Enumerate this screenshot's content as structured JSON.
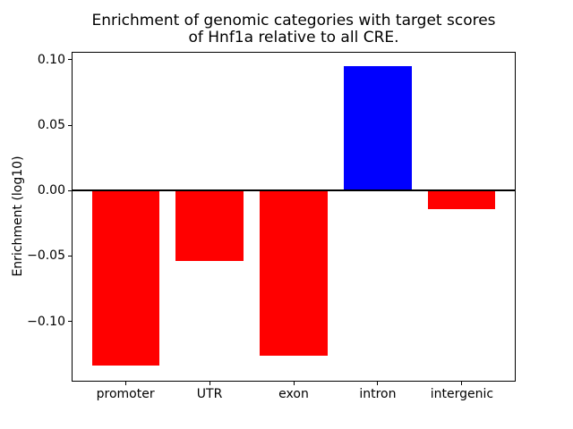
{
  "chart_data": {
    "type": "bar",
    "title": "Enrichment of genomic categories with target scores\nof Hnf1a relative to all CRE.",
    "title_lines": [
      "Enrichment of genomic categories with target scores",
      "of Hnf1a relative to all CRE."
    ],
    "xlabel": "",
    "ylabel": "Enrichment (log10)",
    "categories": [
      "promoter",
      "UTR",
      "exon",
      "intron",
      "intergenic"
    ],
    "values": [
      -0.134,
      -0.054,
      -0.126,
      0.095,
      -0.014
    ],
    "bar_colors": [
      "#ff0000",
      "#ff0000",
      "#ff0000",
      "#0000ff",
      "#ff0000"
    ],
    "yticks": [
      {
        "label": "0.10",
        "value": 0.1
      },
      {
        "label": "0.05",
        "value": 0.05
      },
      {
        "label": "0.00",
        "value": 0.0
      },
      {
        "label": "−0.05",
        "value": -0.05
      },
      {
        "label": "−0.10",
        "value": -0.1
      }
    ],
    "ylim": [
      -0.146,
      0.106
    ],
    "xlim": [
      -0.64,
      4.64
    ],
    "bar_width": 0.8,
    "grid": false,
    "legend": null,
    "zero_line": {
      "value": 0,
      "color": "#000000",
      "thickness_px": 2
    },
    "axis_color": "#000000",
    "background_color": "#ffffff"
  }
}
